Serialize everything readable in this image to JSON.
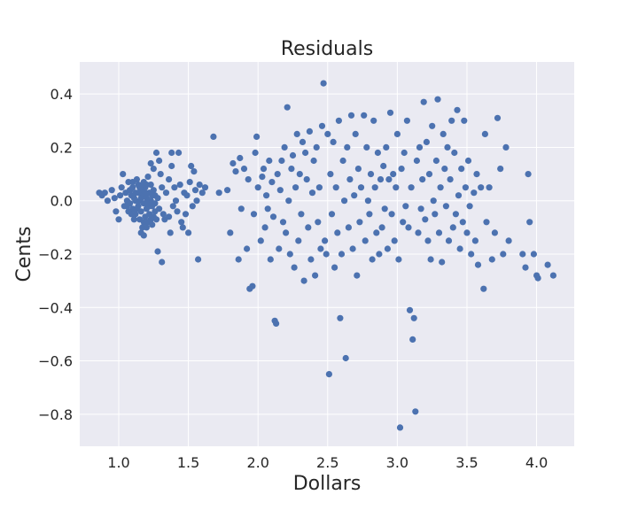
{
  "chart_data": {
    "type": "scatter",
    "title": "Residuals",
    "xlabel": "Dollars",
    "ylabel": "Cents",
    "xlim": [
      0.72,
      4.27
    ],
    "ylim": [
      -0.92,
      0.52
    ],
    "xticks": [
      1.0,
      1.5,
      2.0,
      2.5,
      3.0,
      3.5,
      4.0
    ],
    "xtick_labels": [
      "1.0",
      "1.5",
      "2.0",
      "2.5",
      "3.0",
      "3.5",
      "4.0"
    ],
    "yticks": [
      -0.8,
      -0.6,
      -0.4,
      -0.2,
      0.0,
      0.2,
      0.4
    ],
    "ytick_labels": [
      "−0.8",
      "−0.6",
      "−0.4",
      "−0.2",
      "0.0",
      "0.2",
      "0.4"
    ],
    "grid": true,
    "background": "#eaeaf2",
    "point_color": "#4c72b0",
    "series": [
      {
        "points": [
          [
            0.86,
            0.03
          ],
          [
            0.88,
            0.02
          ],
          [
            0.9,
            0.03
          ],
          [
            0.92,
            0.0
          ],
          [
            0.95,
            0.04
          ],
          [
            0.97,
            0.01
          ],
          [
            0.98,
            -0.04
          ],
          [
            1.0,
            -0.07
          ],
          [
            1.01,
            0.02
          ],
          [
            1.02,
            0.05
          ],
          [
            1.03,
            0.1
          ],
          [
            1.04,
            -0.02
          ],
          [
            1.05,
            0.03
          ],
          [
            1.06,
            0.0
          ],
          [
            1.07,
            0.07
          ],
          [
            1.08,
            -0.01
          ],
          [
            1.08,
            0.04
          ],
          [
            1.09,
            0.02
          ],
          [
            1.1,
            -0.03
          ],
          [
            1.1,
            0.05
          ],
          [
            1.11,
            0.01
          ],
          [
            1.12,
            -0.05
          ],
          [
            1.12,
            0.03
          ],
          [
            1.13,
            0.08
          ],
          [
            1.14,
            -0.02
          ],
          [
            1.14,
            0.06
          ],
          [
            1.15,
            0.0
          ],
          [
            1.15,
            -0.07
          ],
          [
            1.16,
            0.04
          ],
          [
            1.16,
            -0.04
          ],
          [
            1.17,
            0.02
          ],
          [
            1.17,
            -0.1
          ],
          [
            1.18,
            0.07
          ],
          [
            1.18,
            -0.01
          ],
          [
            1.19,
            0.05
          ],
          [
            1.19,
            -0.06
          ],
          [
            1.2,
            0.01
          ],
          [
            1.2,
            -0.03
          ],
          [
            1.21,
            0.09
          ],
          [
            1.21,
            -0.08
          ],
          [
            1.22,
            0.03
          ],
          [
            1.22,
            -0.05
          ],
          [
            1.23,
            0.0
          ],
          [
            1.23,
            0.06
          ],
          [
            1.24,
            -0.02
          ],
          [
            1.24,
            -0.09
          ],
          [
            1.25,
            0.04
          ],
          [
            1.25,
            -0.06
          ],
          [
            1.26,
            0.02
          ],
          [
            1.26,
            -0.04
          ],
          [
            1.27,
            -0.07
          ],
          [
            1.28,
            0.01
          ],
          [
            1.29,
            -0.03
          ],
          [
            1.13,
            -0.03
          ],
          [
            1.15,
            0.05
          ],
          [
            1.17,
            0.06
          ],
          [
            1.11,
            -0.07
          ],
          [
            1.09,
            -0.05
          ],
          [
            1.19,
            0.03
          ],
          [
            1.21,
            -0.01
          ],
          [
            1.23,
            -0.07
          ],
          [
            1.07,
            -0.04
          ],
          [
            1.16,
            0.01
          ],
          [
            1.18,
            -0.08
          ],
          [
            1.2,
            0.06
          ],
          [
            1.22,
            -0.02
          ],
          [
            1.24,
            0.02
          ],
          [
            1.26,
            -0.01
          ],
          [
            1.14,
            0.03
          ],
          [
            1.12,
            0.0
          ],
          [
            1.1,
            0.07
          ],
          [
            1.06,
            -0.02
          ],
          [
            1.18,
            -0.13
          ],
          [
            1.2,
            -0.1
          ],
          [
            1.16,
            -0.12
          ],
          [
            1.27,
            0.18
          ],
          [
            1.29,
            0.15
          ],
          [
            1.25,
            0.12
          ],
          [
            1.23,
            0.14
          ],
          [
            1.3,
            0.1
          ],
          [
            1.31,
            0.05
          ],
          [
            1.32,
            -0.05
          ],
          [
            1.33,
            -0.07
          ],
          [
            1.34,
            0.03
          ],
          [
            1.36,
            0.08
          ],
          [
            1.38,
            0.13
          ],
          [
            1.38,
            0.18
          ],
          [
            1.39,
            -0.02
          ],
          [
            1.4,
            0.05
          ],
          [
            1.41,
            0.0
          ],
          [
            1.42,
            -0.04
          ],
          [
            1.43,
            0.18
          ],
          [
            1.44,
            0.06
          ],
          [
            1.45,
            -0.08
          ],
          [
            1.46,
            -0.1
          ],
          [
            1.47,
            0.03
          ],
          [
            1.48,
            -0.05
          ],
          [
            1.49,
            0.02
          ],
          [
            1.5,
            -0.12
          ],
          [
            1.51,
            0.07
          ],
          [
            1.52,
            0.13
          ],
          [
            1.53,
            -0.02
          ],
          [
            1.54,
            0.11
          ],
          [
            1.55,
            0.04
          ],
          [
            1.56,
            0.0
          ],
          [
            1.58,
            0.06
          ],
          [
            1.6,
            0.03
          ],
          [
            1.62,
            0.05
          ],
          [
            1.57,
            -0.22
          ],
          [
            1.28,
            -0.19
          ],
          [
            1.31,
            -0.23
          ],
          [
            1.36,
            -0.06
          ],
          [
            1.37,
            -0.12
          ],
          [
            1.68,
            0.24
          ],
          [
            1.72,
            0.03
          ],
          [
            1.78,
            0.04
          ],
          [
            1.8,
            -0.12
          ],
          [
            1.82,
            0.14
          ],
          [
            1.84,
            0.11
          ],
          [
            1.86,
            -0.22
          ],
          [
            1.87,
            0.16
          ],
          [
            1.88,
            -0.03
          ],
          [
            1.9,
            0.12
          ],
          [
            1.92,
            -0.18
          ],
          [
            1.93,
            0.08
          ],
          [
            1.94,
            -0.33
          ],
          [
            1.96,
            -0.32
          ],
          [
            1.97,
            -0.05
          ],
          [
            1.98,
            0.18
          ],
          [
            1.99,
            0.24
          ],
          [
            2.0,
            0.05
          ],
          [
            2.02,
            -0.15
          ],
          [
            2.03,
            0.09
          ],
          [
            2.04,
            0.12
          ],
          [
            2.05,
            -0.1
          ],
          [
            2.06,
            0.02
          ],
          [
            2.07,
            -0.03
          ],
          [
            2.08,
            0.15
          ],
          [
            2.09,
            -0.22
          ],
          [
            2.1,
            0.07
          ],
          [
            2.11,
            -0.06
          ],
          [
            2.12,
            -0.45
          ],
          [
            2.13,
            -0.46
          ],
          [
            2.14,
            0.1
          ],
          [
            2.15,
            -0.18
          ],
          [
            2.16,
            0.04
          ],
          [
            2.17,
            0.15
          ],
          [
            2.18,
            -0.08
          ],
          [
            2.19,
            0.2
          ],
          [
            2.2,
            -0.12
          ],
          [
            2.21,
            0.35
          ],
          [
            2.22,
            0.0
          ],
          [
            2.23,
            -0.2
          ],
          [
            2.24,
            0.12
          ],
          [
            2.25,
            0.17
          ],
          [
            2.26,
            -0.25
          ],
          [
            2.27,
            0.05
          ],
          [
            2.28,
            0.25
          ],
          [
            2.29,
            -0.15
          ],
          [
            2.3,
            0.1
          ],
          [
            2.31,
            -0.05
          ],
          [
            2.32,
            0.22
          ],
          [
            2.33,
            -0.3
          ],
          [
            2.34,
            0.18
          ],
          [
            2.35,
            0.08
          ],
          [
            2.36,
            -0.1
          ],
          [
            2.37,
            0.26
          ],
          [
            2.38,
            -0.22
          ],
          [
            2.39,
            0.03
          ],
          [
            2.4,
            0.15
          ],
          [
            2.41,
            -0.28
          ],
          [
            2.42,
            0.2
          ],
          [
            2.43,
            -0.08
          ],
          [
            2.44,
            0.05
          ],
          [
            2.45,
            -0.18
          ],
          [
            2.46,
            0.28
          ],
          [
            2.47,
            0.44
          ],
          [
            2.48,
            -0.15
          ],
          [
            2.49,
            -0.2
          ],
          [
            2.5,
            0.25
          ],
          [
            2.51,
            -0.65
          ],
          [
            2.52,
            0.1
          ],
          [
            2.53,
            -0.05
          ],
          [
            2.54,
            0.22
          ],
          [
            2.55,
            -0.25
          ],
          [
            2.56,
            0.05
          ],
          [
            2.57,
            -0.12
          ],
          [
            2.58,
            0.3
          ],
          [
            2.59,
            -0.44
          ],
          [
            2.6,
            -0.2
          ],
          [
            2.61,
            0.15
          ],
          [
            2.62,
            0.0
          ],
          [
            2.63,
            -0.59
          ],
          [
            2.64,
            0.2
          ],
          [
            2.65,
            -0.1
          ],
          [
            2.66,
            0.08
          ],
          [
            2.67,
            0.32
          ],
          [
            2.68,
            -0.18
          ],
          [
            2.69,
            0.02
          ],
          [
            2.7,
            0.25
          ],
          [
            2.71,
            -0.28
          ],
          [
            2.72,
            0.12
          ],
          [
            2.73,
            -0.08
          ],
          [
            2.74,
            0.05
          ],
          [
            2.76,
            0.32
          ],
          [
            2.77,
            -0.15
          ],
          [
            2.78,
            0.2
          ],
          [
            2.79,
            0.0
          ],
          [
            2.8,
            -0.05
          ],
          [
            2.81,
            0.1
          ],
          [
            2.82,
            -0.22
          ],
          [
            2.83,
            0.3
          ],
          [
            2.84,
            0.05
          ],
          [
            2.85,
            -0.12
          ],
          [
            2.86,
            0.18
          ],
          [
            2.87,
            -0.2
          ],
          [
            2.88,
            0.08
          ],
          [
            2.89,
            -0.1
          ],
          [
            2.9,
            0.13
          ],
          [
            2.91,
            -0.03
          ],
          [
            2.92,
            0.2
          ],
          [
            2.93,
            -0.18
          ],
          [
            2.94,
            0.08
          ],
          [
            2.95,
            0.33
          ],
          [
            2.96,
            -0.05
          ],
          [
            2.97,
            0.1
          ],
          [
            2.98,
            -0.15
          ],
          [
            2.99,
            0.05
          ],
          [
            3.0,
            0.25
          ],
          [
            3.01,
            -0.22
          ],
          [
            3.02,
            -0.85
          ],
          [
            3.03,
            0.12
          ],
          [
            3.04,
            -0.08
          ],
          [
            3.05,
            0.18
          ],
          [
            3.06,
            -0.02
          ],
          [
            3.07,
            0.3
          ],
          [
            3.08,
            -0.1
          ],
          [
            3.09,
            -0.41
          ],
          [
            3.1,
            0.05
          ],
          [
            3.11,
            -0.52
          ],
          [
            3.12,
            -0.44
          ],
          [
            3.13,
            -0.79
          ],
          [
            3.14,
            0.15
          ],
          [
            3.15,
            -0.12
          ],
          [
            3.16,
            0.2
          ],
          [
            3.17,
            -0.03
          ],
          [
            3.18,
            0.08
          ],
          [
            3.19,
            0.37
          ],
          [
            3.2,
            -0.07
          ],
          [
            3.21,
            0.22
          ],
          [
            3.22,
            -0.15
          ],
          [
            3.23,
            0.1
          ],
          [
            3.24,
            -0.22
          ],
          [
            3.25,
            0.28
          ],
          [
            3.26,
            0.0
          ],
          [
            3.27,
            -0.05
          ],
          [
            3.28,
            0.15
          ],
          [
            3.29,
            0.38
          ],
          [
            3.3,
            -0.12
          ],
          [
            3.31,
            0.05
          ],
          [
            3.32,
            -0.23
          ],
          [
            3.33,
            0.25
          ],
          [
            3.34,
            0.12
          ],
          [
            3.35,
            -0.02
          ],
          [
            3.36,
            0.2
          ],
          [
            3.37,
            -0.15
          ],
          [
            3.38,
            0.08
          ],
          [
            3.39,
            0.3
          ],
          [
            3.4,
            -0.1
          ],
          [
            3.41,
            0.18
          ],
          [
            3.42,
            -0.05
          ],
          [
            3.43,
            0.34
          ],
          [
            3.44,
            0.02
          ],
          [
            3.45,
            -0.18
          ],
          [
            3.46,
            0.12
          ],
          [
            3.47,
            -0.08
          ],
          [
            3.48,
            0.3
          ],
          [
            3.49,
            0.05
          ],
          [
            3.5,
            -0.12
          ],
          [
            3.51,
            0.15
          ],
          [
            3.52,
            -0.02
          ],
          [
            3.53,
            -0.2
          ],
          [
            3.55,
            0.03
          ],
          [
            3.56,
            -0.15
          ],
          [
            3.57,
            0.1
          ],
          [
            3.58,
            -0.24
          ],
          [
            3.6,
            0.05
          ],
          [
            3.62,
            -0.33
          ],
          [
            3.63,
            0.25
          ],
          [
            3.64,
            -0.08
          ],
          [
            3.66,
            0.05
          ],
          [
            3.68,
            -0.22
          ],
          [
            3.7,
            -0.12
          ],
          [
            3.72,
            0.31
          ],
          [
            3.74,
            0.12
          ],
          [
            3.76,
            -0.2
          ],
          [
            3.78,
            0.2
          ],
          [
            3.8,
            -0.15
          ],
          [
            3.9,
            -0.2
          ],
          [
            3.92,
            -0.25
          ],
          [
            3.94,
            0.1
          ],
          [
            3.95,
            -0.08
          ],
          [
            3.98,
            -0.2
          ],
          [
            4.0,
            -0.28
          ],
          [
            4.01,
            -0.29
          ],
          [
            4.08,
            -0.24
          ],
          [
            4.12,
            -0.28
          ]
        ]
      }
    ]
  }
}
